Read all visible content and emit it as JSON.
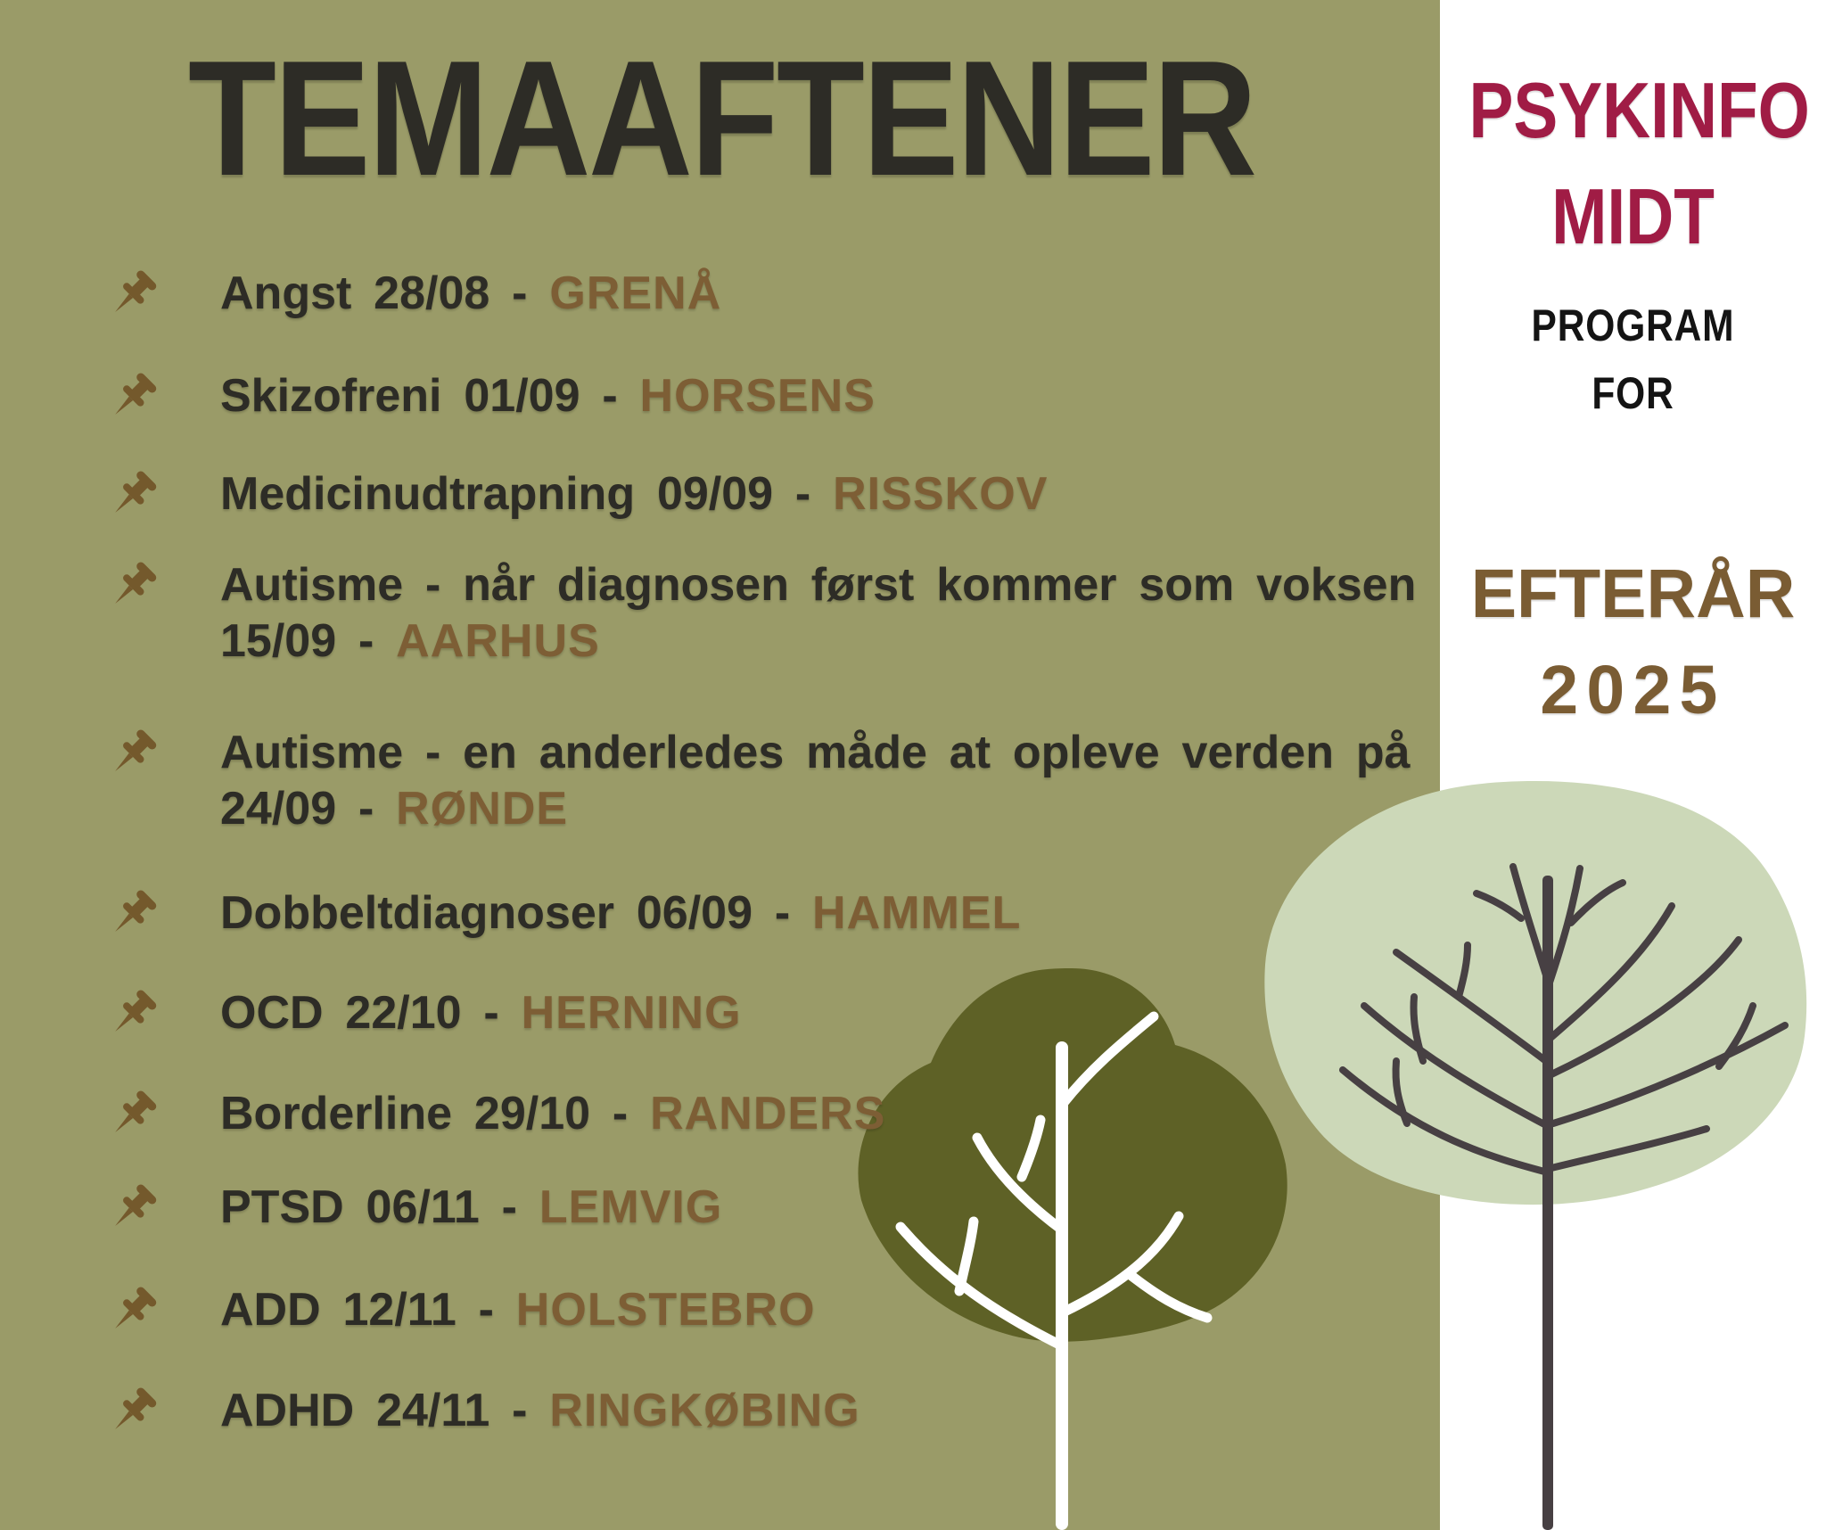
{
  "title": "TEMAAFTENER",
  "events": [
    {
      "name": "Angst",
      "date": "28/08",
      "city": "GRENÅ",
      "two_line": false
    },
    {
      "name": "Skizofreni",
      "date": "01/09",
      "city": "HORSENS",
      "two_line": false
    },
    {
      "name": "Medicinudtrapning",
      "date": "09/09",
      "city": "RISSKOV",
      "two_line": false
    },
    {
      "name": "Autisme - når diagnosen først kommer som voksen",
      "date": "15/09",
      "city": "AARHUS",
      "two_line": true
    },
    {
      "name": "Autisme - en anderledes måde at opleve verden på",
      "date": "24/09",
      "city": "RØNDE",
      "two_line": true
    },
    {
      "name": "Dobbeltdiagnoser",
      "date": "06/09",
      "city": "HAMMEL",
      "two_line": false
    },
    {
      "name": "OCD",
      "date": "22/10",
      "city": "HERNING",
      "two_line": false
    },
    {
      "name": "Borderline",
      "date": "29/10",
      "city": "RANDERS",
      "two_line": false
    },
    {
      "name": "PTSD",
      "date": "06/11",
      "city": "LEMVIG",
      "two_line": false
    },
    {
      "name": "ADD",
      "date": "12/11",
      "city": "HOLSTEBRO",
      "two_line": false
    },
    {
      "name": "ADHD",
      "date": "24/11",
      "city": "RINGKØBING",
      "two_line": false
    }
  ],
  "side_panel": {
    "brand_line1": "PSYKINFO",
    "brand_line2": "MIDT",
    "program_line1": "PROGRAM",
    "program_line2": "FOR",
    "season_line1": "EFTERÅR",
    "season_line2": "2025"
  },
  "colors": {
    "olive_bg": "#9a9b68",
    "text_dark": "#2d2c26",
    "accent_brown": "#7d5e35",
    "pin_brown": "#74592c",
    "brand_crimson": "#a01c45",
    "season_brown": "#7a5c33",
    "sage_blob": "#ccd8b8",
    "canopy_olive": "#5e6126",
    "trunk_dark": "#474043",
    "trunk_white": "#ffffff"
  }
}
